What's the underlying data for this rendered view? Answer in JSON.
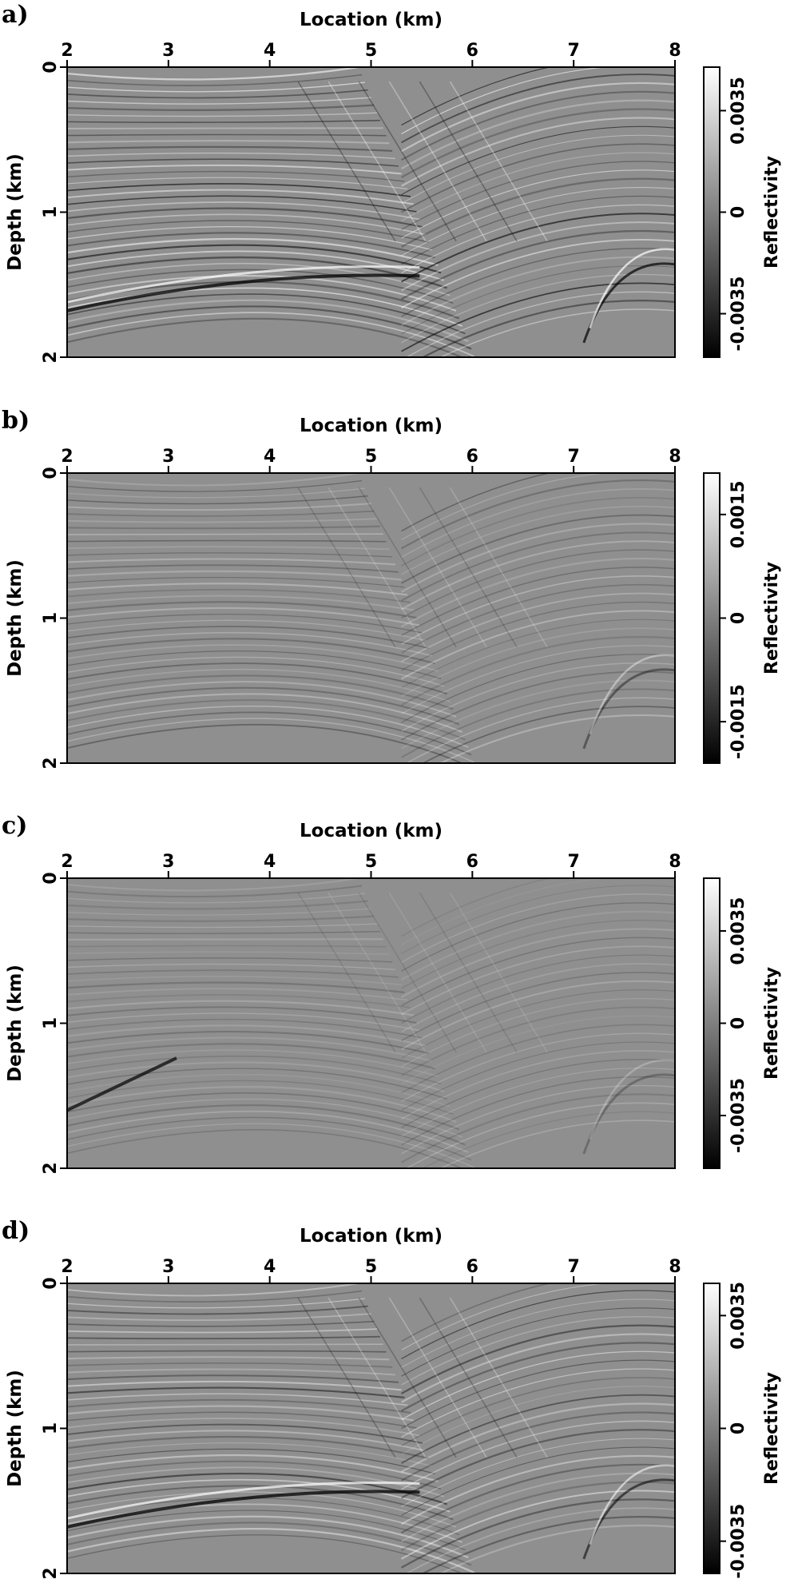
{
  "chart_data": [
    {
      "type": "heatmap",
      "panel_label": "a)",
      "xlabel": "Location (km)",
      "ylabel": "Depth (km)",
      "xlim": [
        2,
        8
      ],
      "ylim": [
        0,
        2
      ],
      "x_ticks": [
        "2",
        "3",
        "4",
        "5",
        "6",
        "7",
        "8"
      ],
      "y_ticks": [
        "0",
        "1",
        "2"
      ],
      "colorbar": {
        "label": "Reflectivity",
        "ticks": [
          "-0.0035",
          "0",
          "0.0035"
        ],
        "range": [
          -0.005,
          0.005
        ]
      },
      "cmap": "gray"
    },
    {
      "type": "heatmap",
      "panel_label": "b)",
      "xlabel": "Location (km)",
      "ylabel": "Depth (km)",
      "xlim": [
        2,
        8
      ],
      "ylim": [
        0,
        2
      ],
      "x_ticks": [
        "2",
        "3",
        "4",
        "5",
        "6",
        "7",
        "8"
      ],
      "y_ticks": [
        "0",
        "1",
        "2"
      ],
      "colorbar": {
        "label": "Reflectivity",
        "ticks": [
          "-0.0015",
          "0",
          "0.0015"
        ],
        "range": [
          -0.0021,
          0.0021
        ]
      },
      "cmap": "gray"
    },
    {
      "type": "heatmap",
      "panel_label": "c)",
      "xlabel": "Location (km)",
      "ylabel": "Depth (km)",
      "xlim": [
        2,
        8
      ],
      "ylim": [
        0,
        2
      ],
      "x_ticks": [
        "2",
        "3",
        "4",
        "5",
        "6",
        "7",
        "8"
      ],
      "y_ticks": [
        "0",
        "1",
        "2"
      ],
      "colorbar": {
        "label": "Reflectivity",
        "ticks": [
          "-0.0035",
          "0",
          "0.0035"
        ],
        "range": [
          -0.0055,
          0.0055
        ]
      },
      "cmap": "gray"
    },
    {
      "type": "heatmap",
      "panel_label": "d)",
      "xlabel": "Location (km)",
      "ylabel": "Depth (km)",
      "xlim": [
        2,
        8
      ],
      "ylim": [
        0,
        2
      ],
      "x_ticks": [
        "2",
        "3",
        "4",
        "5",
        "6",
        "7",
        "8"
      ],
      "y_ticks": [
        "0",
        "1",
        "2"
      ],
      "colorbar": {
        "label": "Reflectivity",
        "ticks": [
          "-0.0035",
          "0",
          "0.0035"
        ],
        "range": [
          -0.0045,
          0.0045
        ]
      },
      "cmap": "gray"
    }
  ]
}
